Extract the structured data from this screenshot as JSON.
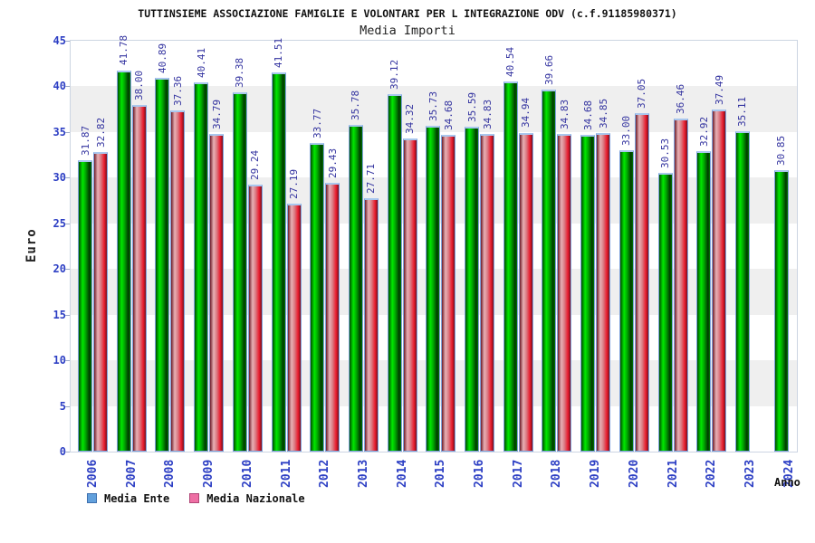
{
  "chart_data": {
    "type": "bar",
    "title": "TUTTINSIEME ASSOCIAZIONE FAMIGLIE E VOLONTARI PER L INTEGRAZIONE ODV (c.f.91185980371)",
    "subtitle": "Media Importi",
    "xlabel": "Anno",
    "ylabel": "Euro",
    "ylim": [
      0,
      45
    ],
    "yticks": [
      0,
      5,
      10,
      15,
      20,
      25,
      30,
      35,
      40,
      45
    ],
    "grid": "alternating horizontal bands every 5 units (gray 5-10, 15-20, 25-30, 35-40)",
    "legend_position": "bottom-left",
    "value_labels": "rotated 90deg above each bar",
    "categories": [
      "2006",
      "2007",
      "2008",
      "2009",
      "2010",
      "2011",
      "2012",
      "2013",
      "2014",
      "2015",
      "2016",
      "2017",
      "2018",
      "2019",
      "2020",
      "2021",
      "2022",
      "2023",
      "2024"
    ],
    "series": [
      {
        "name": "Media Ente",
        "bar_color": "#00cc00",
        "legend_swatch_color": "#62a0dc",
        "values": [
          31.87,
          41.78,
          40.89,
          40.41,
          39.38,
          41.51,
          33.77,
          35.78,
          39.12,
          35.73,
          35.59,
          40.54,
          39.66,
          34.68,
          33.0,
          30.53,
          32.92,
          35.11,
          30.85
        ]
      },
      {
        "name": "Media Nazionale",
        "bar_color": "#ee2233",
        "legend_swatch_color": "#ee6fa4",
        "values": [
          32.82,
          38.0,
          37.36,
          34.79,
          29.24,
          27.19,
          29.43,
          27.71,
          34.32,
          34.68,
          34.83,
          34.94,
          34.83,
          34.85,
          37.05,
          36.46,
          37.49,
          null,
          null
        ]
      }
    ]
  },
  "colors": {
    "axis_label_blue": "#2d3fc4",
    "value_label_navy": "#3434a0",
    "band_gray": "#efefef",
    "plot_border": "#ccd5e2",
    "bar_border_blue": "#7ea2dc",
    "bar_cap_blue": "#a9c7ee",
    "title_text": "#111111"
  }
}
